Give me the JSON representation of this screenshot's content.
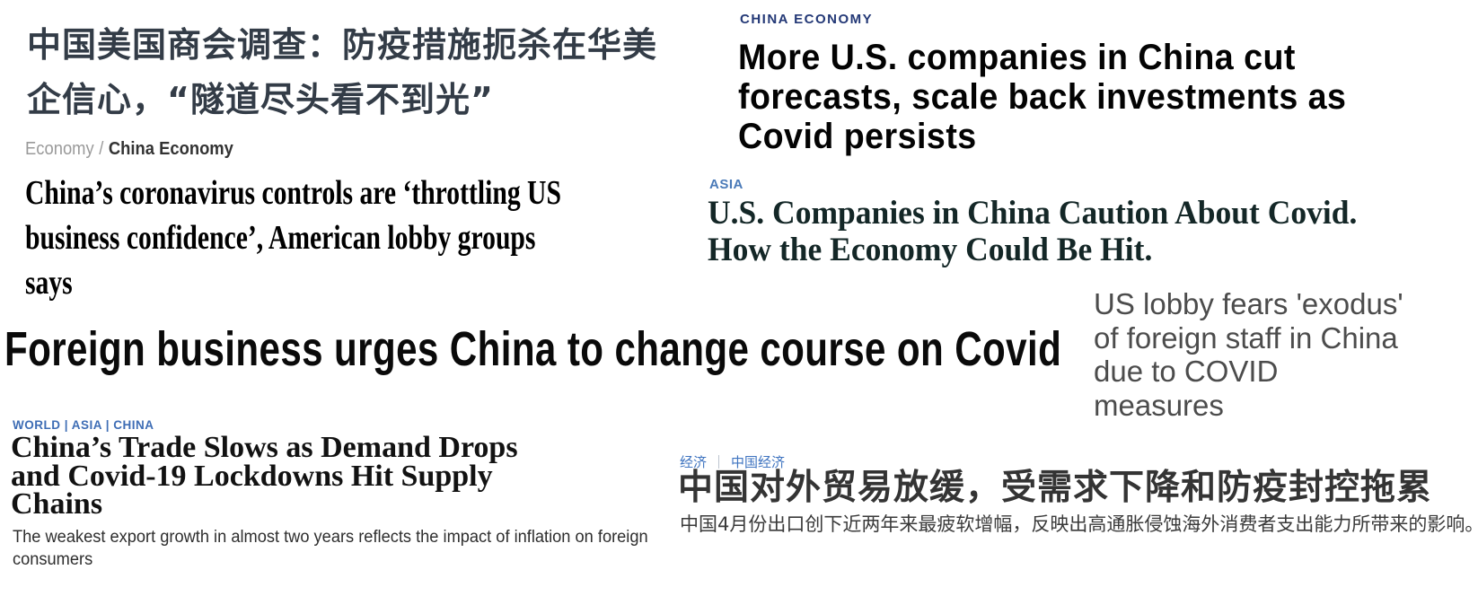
{
  "colors": {
    "page_bg": "#ffffff",
    "scmp_cn_headline": "#333c47",
    "breadcrumb_muted": "#9a9a9a",
    "breadcrumb_active": "#333333",
    "scmp_en_headline": "#000000",
    "cnbc_kicker": "#233876",
    "cnbc_headline": "#030303",
    "wsj_kicker": "#4a7ab8",
    "wsj_headline": "#142727",
    "reuters_headline": "#4c4c4c",
    "ap_headline": "#0a0a0a",
    "nyt_kicker": "#3e6db5",
    "nyt_headline": "#121212",
    "nyt_subtitle": "#2e2e2e",
    "wsjcn_kicker": "#3f74c0",
    "wsjcn_separator": "#9aa7b5",
    "wsjcn_headline": "#343434",
    "wsjcn_subtitle": "#3a3a3a"
  },
  "articles": {
    "scmp_cn": {
      "headline_lines": [
        "中国美国商会调查：防疫措施扼杀在华美",
        "企信心，“隧道尽头看不到光”"
      ]
    },
    "scmp_en": {
      "breadcrumb": {
        "section": "Economy",
        "separator": "/",
        "subsection": "China Economy"
      },
      "headline_lines": [
        "China’s coronavirus controls are ‘throttling US",
        "business confidence’, American lobby groups",
        "says"
      ]
    },
    "cnbc": {
      "kicker": "CHINA ECONOMY",
      "headline_lines": [
        "More U.S. companies in China cut",
        "forecasts, scale back investments as",
        "Covid persists"
      ]
    },
    "wsj": {
      "kicker": "ASIA",
      "headline_lines": [
        "U.S. Companies in China Caution About Covid.",
        "How the Economy Could Be Hit."
      ]
    },
    "reuters": {
      "headline_lines": [
        "US lobby fears 'exodus'",
        "of foreign staff in China",
        "due to COVID",
        "measures"
      ]
    },
    "ap": {
      "headline": "Foreign business urges China to change course on Covid"
    },
    "nyt": {
      "kicker": "WORLD | ASIA | CHINA",
      "headline_lines": [
        "China’s Trade Slows as Demand Drops",
        "and Covid-19 Lockdowns Hit Supply",
        "Chains"
      ],
      "subtitle_lines": [
        "The weakest export growth in almost two years reflects the impact of inflation on foreign",
        "consumers"
      ]
    },
    "wsj_cn": {
      "kicker_section": "经济",
      "kicker_separator": "｜",
      "kicker_subsection": "中国经济",
      "headline": "中国对外贸易放缓，受需求下降和防疫封控拖累",
      "subtitle": "中国4月份出口创下近两年来最疲软增幅，反映出高通胀侵蚀海外消费者支出能力所带来的影响。"
    }
  }
}
